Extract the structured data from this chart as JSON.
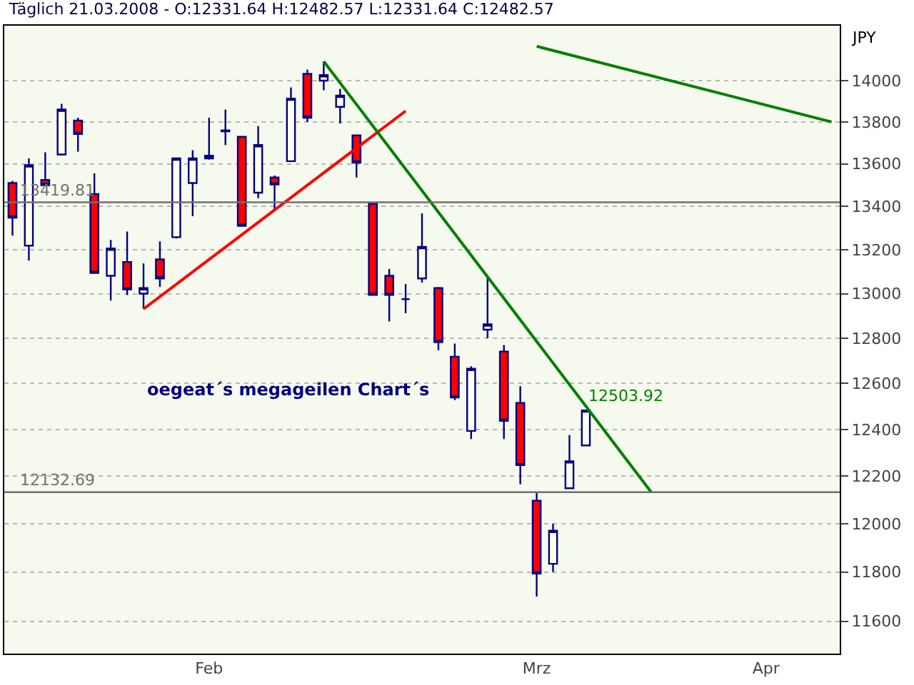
{
  "chart_data": {
    "type": "candlestick",
    "title": "Täglich 21.03.2008 - O:12331.64 H:12482.57 L:12331.64 C:12482.57",
    "ylabel": "JPY",
    "categories": [
      null,
      null,
      null,
      null,
      null,
      null,
      null,
      null,
      null,
      null,
      null,
      null,
      "Feb",
      null,
      null,
      null,
      null,
      null,
      null,
      null,
      null,
      null,
      null,
      null,
      null,
      null,
      null,
      null,
      null,
      null,
      null,
      null,
      "Mrz",
      null,
      null,
      null,
      null,
      null,
      null,
      null,
      null,
      null,
      null,
      null,
      null,
      null,
      "Apr",
      null,
      null,
      null,
      null
    ],
    "ohlc": [
      [
        13510,
        13520,
        13265,
        13348
      ],
      [
        13219,
        13626,
        13150,
        13594
      ],
      [
        13524,
        13655,
        13495,
        13500
      ],
      [
        13645,
        13887,
        13640,
        13860
      ],
      [
        13807,
        13820,
        13658,
        13742
      ],
      [
        13458,
        13555,
        13090,
        13094
      ],
      [
        13081,
        13245,
        12969,
        13206
      ],
      [
        13144,
        13284,
        12994,
        13019
      ],
      [
        13000,
        13137,
        12931,
        13025
      ],
      [
        13156,
        13239,
        13031,
        13069
      ],
      [
        13258,
        13626,
        13252,
        13626
      ],
      [
        13510,
        13665,
        13355,
        13626
      ],
      [
        13626,
        13820,
        13620,
        13639
      ],
      [
        13755,
        13860,
        13690,
        13760
      ],
      [
        13729,
        13730,
        13310,
        13310
      ],
      [
        13465,
        13780,
        13439,
        13690
      ],
      [
        13536,
        13545,
        13380,
        13503
      ],
      [
        13613,
        13967,
        13613,
        13913
      ],
      [
        14033,
        14054,
        13800,
        13820
      ],
      [
        14000,
        14094,
        13953,
        14027
      ],
      [
        13873,
        13960,
        13793,
        13927
      ],
      [
        13736,
        13740,
        13536,
        13606
      ],
      [
        13413,
        13415,
        12994,
        12994
      ],
      [
        13081,
        13112,
        12875,
        12994
      ],
      [
        12975,
        13044,
        12912,
        12975
      ],
      [
        13069,
        13368,
        13050,
        13213
      ],
      [
        13025,
        13030,
        12747,
        12782
      ],
      [
        12718,
        12776,
        12527,
        12539
      ],
      [
        12394,
        12676,
        12359,
        12665
      ],
      [
        12838,
        13075,
        12800,
        12862
      ],
      [
        12741,
        12770,
        12359,
        12437
      ],
      [
        12515,
        12588,
        12166,
        12247
      ],
      [
        12097,
        12131,
        11700,
        11794
      ],
      [
        11834,
        12000,
        11800,
        11971
      ],
      [
        12149,
        12376,
        12149,
        12264
      ],
      [
        12331.64,
        12482.57,
        12331.64,
        12482.57
      ],
      null,
      null,
      null,
      null,
      null,
      null,
      null,
      null,
      null,
      null,
      null,
      null,
      null,
      null,
      null
    ],
    "series": [
      {
        "type": "line",
        "color": "#ff0000",
        "values": [
          null,
          null,
          null,
          null,
          null,
          null,
          null,
          null,
          12931,
          null,
          null,
          null,
          null,
          null,
          null,
          null,
          null,
          null,
          null,
          null,
          null,
          null,
          null,
          null,
          13853,
          null,
          null,
          null,
          null,
          null,
          null,
          null,
          null,
          null,
          null,
          null,
          null,
          null,
          null,
          null,
          null,
          null,
          null,
          null,
          null,
          null,
          null,
          null,
          null,
          null,
          null
        ]
      },
      {
        "type": "line",
        "color": "#008000",
        "values": [
          null,
          null,
          null,
          null,
          null,
          null,
          null,
          null,
          null,
          null,
          null,
          null,
          null,
          null,
          null,
          null,
          null,
          null,
          null,
          14094,
          null,
          null,
          null,
          null,
          null,
          null,
          null,
          null,
          null,
          null,
          null,
          null,
          null,
          null,
          null,
          null,
          null,
          null,
          null,
          12132,
          null,
          null,
          null,
          null,
          null,
          null,
          null,
          null,
          null,
          null,
          null
        ]
      },
      {
        "type": "line",
        "color": "#008000",
        "values": [
          null,
          null,
          null,
          null,
          null,
          null,
          null,
          null,
          null,
          null,
          null,
          null,
          null,
          null,
          null,
          null,
          null,
          null,
          null,
          null,
          null,
          null,
          null,
          null,
          null,
          null,
          null,
          null,
          null,
          null,
          null,
          null,
          14168,
          null,
          null,
          null,
          null,
          null,
          null,
          null,
          null,
          null,
          null,
          null,
          null,
          null,
          null,
          null,
          null,
          null,
          13800
        ]
      }
    ],
    "ylim": [
      11470,
      14270
    ],
    "yticks": [
      11600,
      11800,
      12000,
      12200,
      12400,
      12600,
      12800,
      13000,
      13200,
      13400,
      13600,
      13800,
      14000
    ],
    "log": true,
    "grid": "y",
    "ref_lines": [
      {
        "axis": "y",
        "value": 13419.81,
        "label": "13419.81",
        "color": "#707070"
      },
      {
        "axis": "y",
        "value": 12132.69,
        "label": "12132.69",
        "color": "#707070"
      }
    ],
    "annotations": [
      "12503.92",
      "oegeat´s megageilen Chart´s"
    ]
  }
}
